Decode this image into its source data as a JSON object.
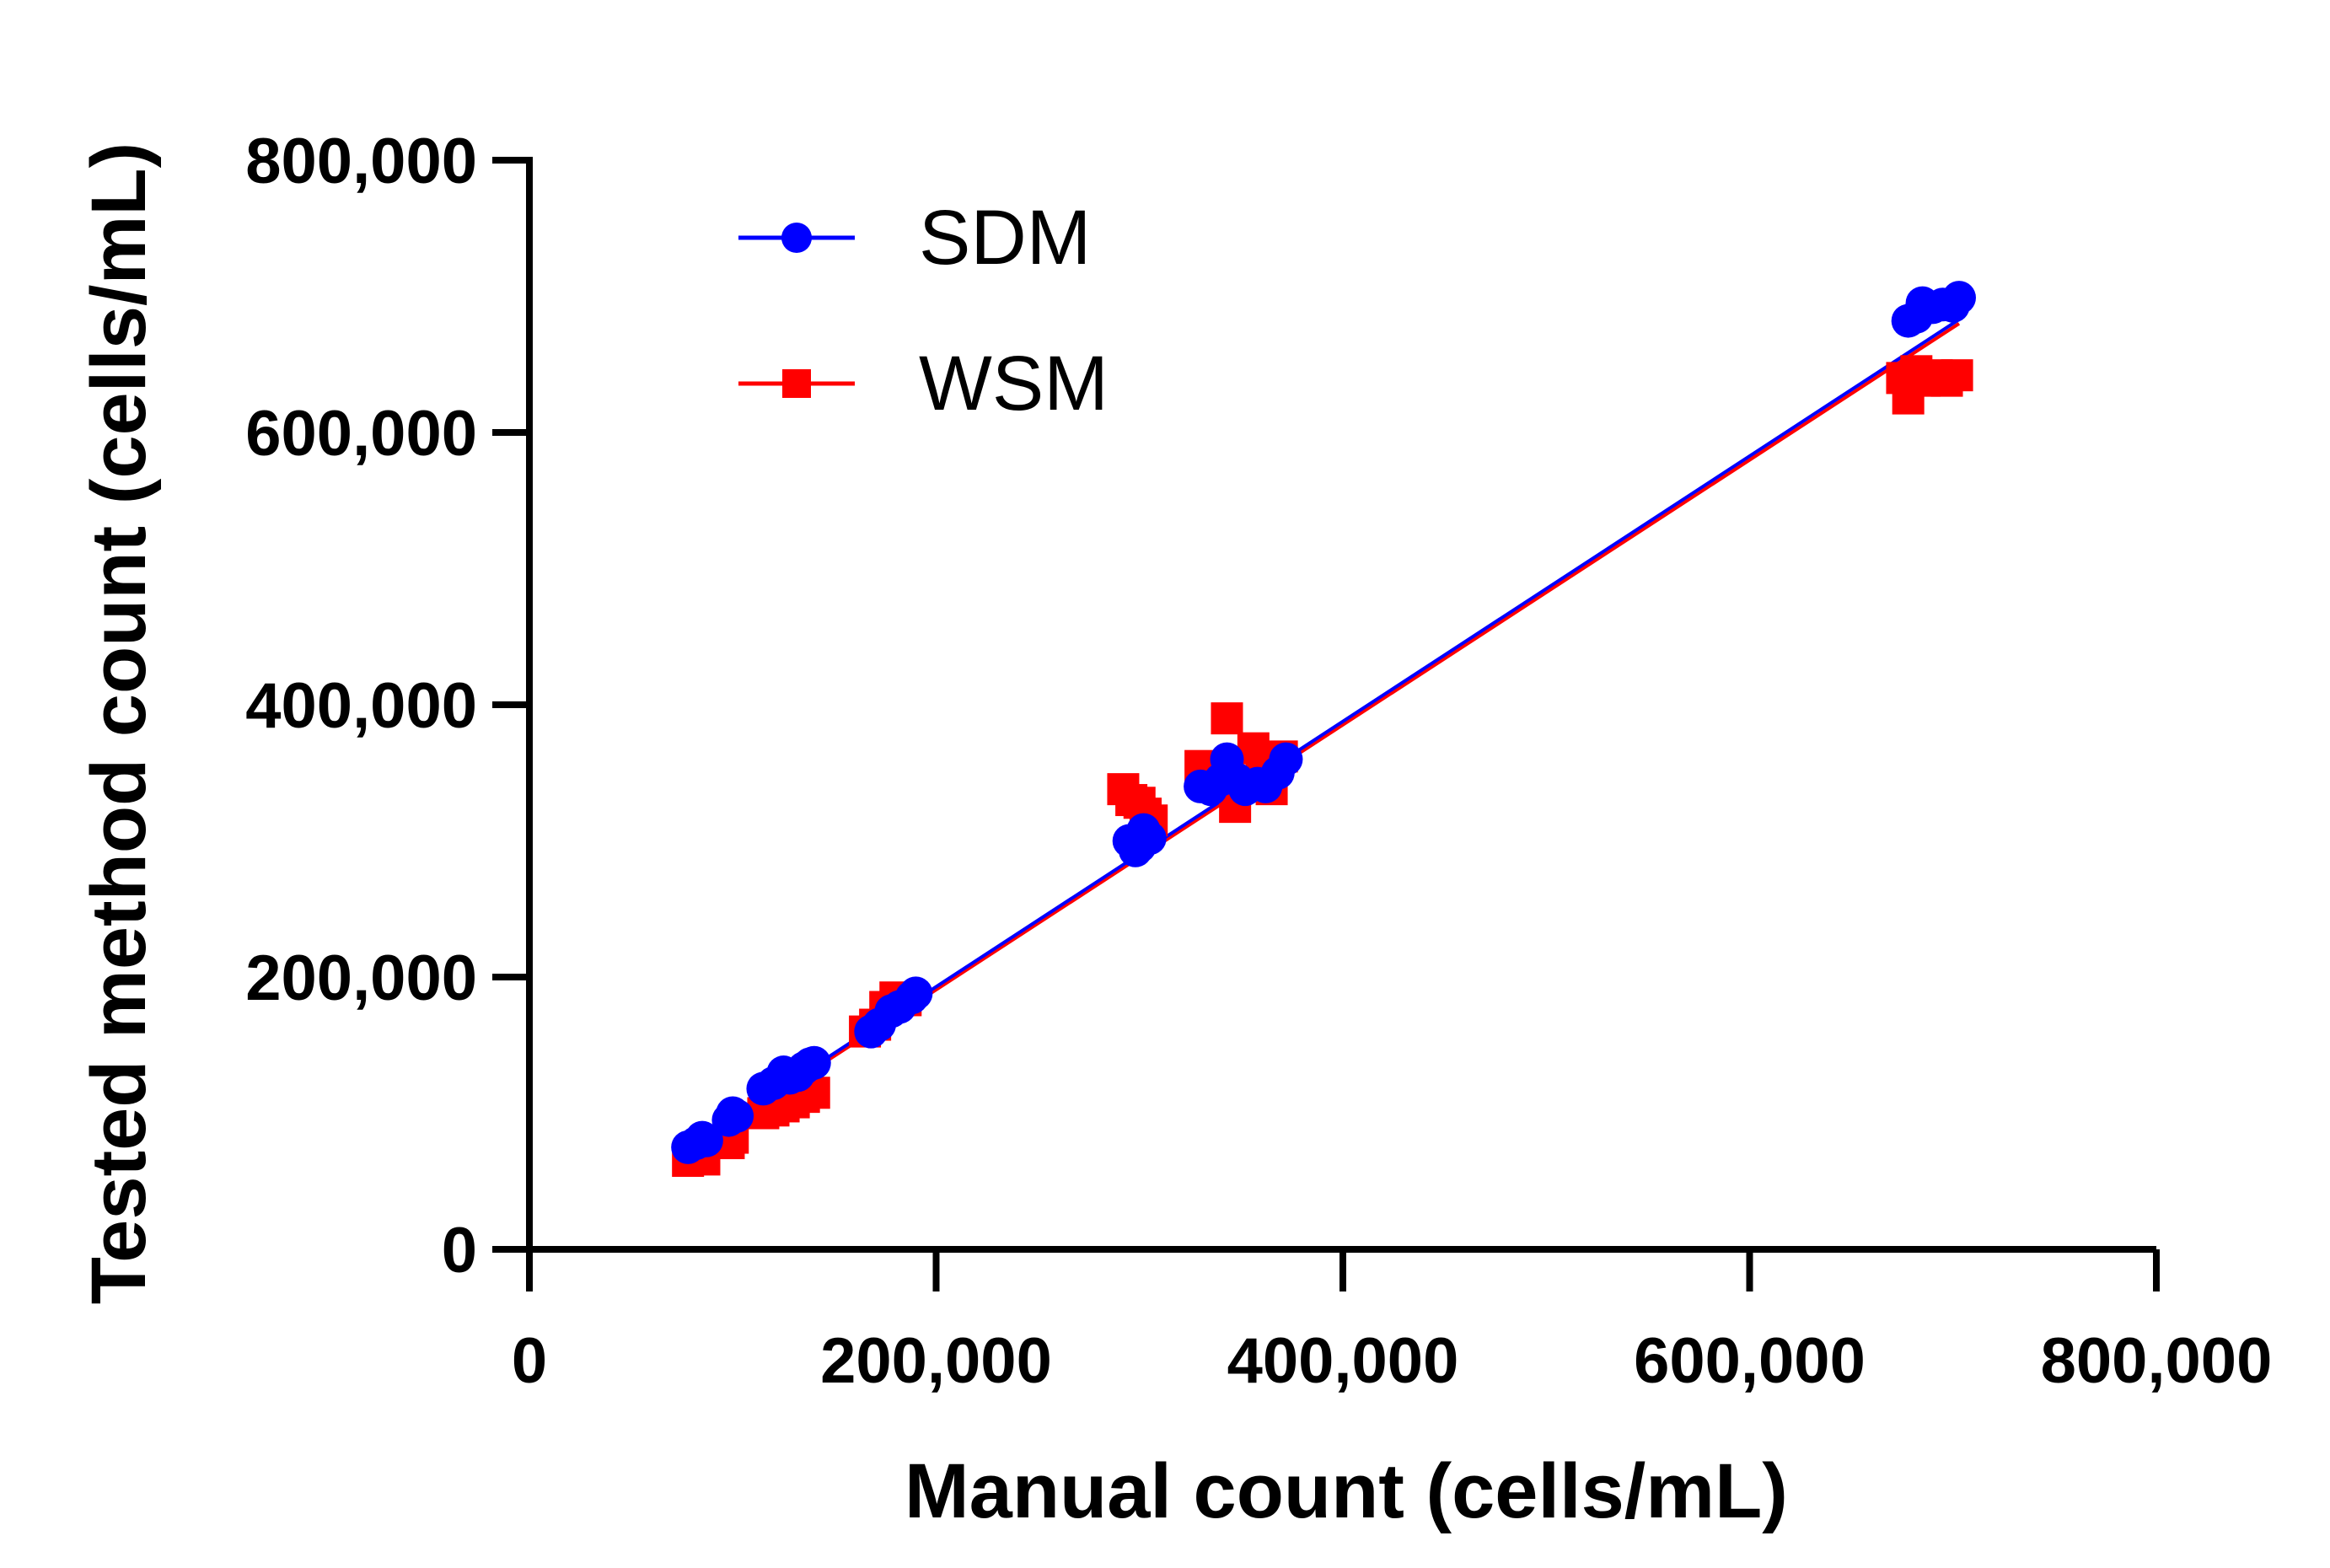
{
  "chart_data": {
    "type": "scatter",
    "xlabel": "Manual count (cells/mL)",
    "ylabel": "Tested method count (cells/mL)",
    "xlim": [
      0,
      800000
    ],
    "ylim": [
      0,
      800000
    ],
    "x_ticks": [
      0,
      200000,
      400000,
      600000,
      800000
    ],
    "y_ticks": [
      0,
      200000,
      400000,
      600000,
      800000
    ],
    "x_tick_labels": [
      "0",
      "200,000",
      "400,000",
      "600,000",
      "800,000"
    ],
    "y_tick_labels": [
      "0",
      "200,000",
      "400,000",
      "600,000",
      "800,000"
    ],
    "grid": false,
    "legend_position": "top-left",
    "series": [
      {
        "name": "SDM",
        "color": "#0000ff",
        "marker": "circle",
        "points": [
          [
            78000,
            75000
          ],
          [
            82000,
            78000
          ],
          [
            85000,
            82000
          ],
          [
            87000,
            80000
          ],
          [
            98000,
            95000
          ],
          [
            100000,
            100000
          ],
          [
            102000,
            98000
          ],
          [
            115000,
            118000
          ],
          [
            120000,
            122000
          ],
          [
            125000,
            130000
          ],
          [
            128000,
            126000
          ],
          [
            132000,
            128000
          ],
          [
            135000,
            133000
          ],
          [
            138000,
            136000
          ],
          [
            140000,
            137000
          ],
          [
            168000,
            160000
          ],
          [
            172000,
            165000
          ],
          [
            178000,
            175000
          ],
          [
            182000,
            178000
          ],
          [
            188000,
            185000
          ],
          [
            190000,
            188000
          ],
          [
            295000,
            300000
          ],
          [
            298000,
            293000
          ],
          [
            300000,
            296000
          ],
          [
            302000,
            308000
          ],
          [
            305000,
            302000
          ],
          [
            330000,
            340000
          ],
          [
            335000,
            338000
          ],
          [
            340000,
            345000
          ],
          [
            343000,
            360000
          ],
          [
            348000,
            345000
          ],
          [
            352000,
            338000
          ],
          [
            358000,
            342000
          ],
          [
            362000,
            340000
          ],
          [
            368000,
            350000
          ],
          [
            372000,
            360000
          ],
          [
            678000,
            682000
          ],
          [
            682000,
            685000
          ],
          [
            685000,
            695000
          ],
          [
            690000,
            692000
          ],
          [
            695000,
            694000
          ],
          [
            700000,
            693000
          ],
          [
            703000,
            699000
          ]
        ],
        "fit": {
          "x": [
            78000,
            703000
          ],
          "y": [
            74000,
            683000
          ]
        }
      },
      {
        "name": "WSM",
        "color": "#ff0000",
        "marker": "square",
        "points": [
          [
            78000,
            65000
          ],
          [
            82000,
            68000
          ],
          [
            86000,
            66000
          ],
          [
            98000,
            78000
          ],
          [
            100000,
            82000
          ],
          [
            115000,
            100000
          ],
          [
            120000,
            102000
          ],
          [
            125000,
            105000
          ],
          [
            130000,
            108000
          ],
          [
            135000,
            112000
          ],
          [
            140000,
            115000
          ],
          [
            165000,
            160000
          ],
          [
            170000,
            165000
          ],
          [
            175000,
            178000
          ],
          [
            180000,
            185000
          ],
          [
            185000,
            183000
          ],
          [
            292000,
            338000
          ],
          [
            296000,
            330000
          ],
          [
            300000,
            328000
          ],
          [
            303000,
            320000
          ],
          [
            306000,
            315000
          ],
          [
            330000,
            355000
          ],
          [
            335000,
            350000
          ],
          [
            340000,
            345000
          ],
          [
            343000,
            390000
          ],
          [
            347000,
            325000
          ],
          [
            352000,
            340000
          ],
          [
            356000,
            368000
          ],
          [
            360000,
            345000
          ],
          [
            365000,
            338000
          ],
          [
            370000,
            362000
          ],
          [
            675000,
            640000
          ],
          [
            678000,
            625000
          ],
          [
            682000,
            645000
          ],
          [
            686000,
            638000
          ],
          [
            692000,
            642000
          ],
          [
            697000,
            638000
          ],
          [
            702000,
            642000
          ]
        ],
        "fit": {
          "x": [
            78000,
            703000
          ],
          "y": [
            72000,
            680000
          ]
        }
      }
    ]
  }
}
